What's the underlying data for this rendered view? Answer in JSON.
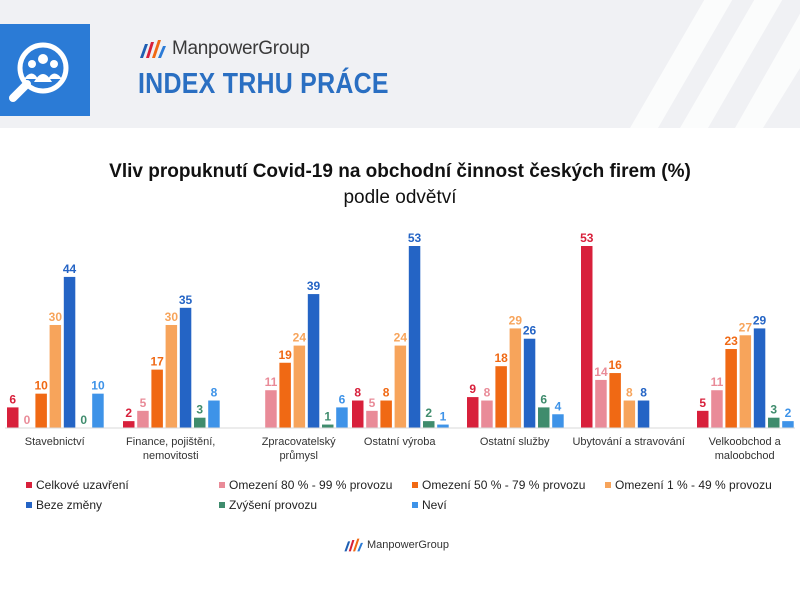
{
  "banner": {
    "brand": "ManpowerGroup",
    "title": "INDEX TRHU PRÁCE",
    "icon": "people-search-icon"
  },
  "footer": {
    "brand": "ManpowerGroup"
  },
  "colors": {
    "brand_blue": "#2b7bd6",
    "title_blue": "#2a6fc2"
  },
  "chart_data": {
    "type": "bar",
    "title": "Vliv propuknutí Covid-19 na obchodní činnost českých firem (%)",
    "subtitle": "podle odvětví",
    "xlabel": "",
    "ylabel": "",
    "ylim": [
      0,
      55
    ],
    "grid": false,
    "legend_position": "bottom",
    "categories": [
      [
        "Stavebnictví"
      ],
      [
        "Finance, pojištění,",
        "nemovitosti"
      ],
      [
        "Zpracovatelský",
        "průmysl"
      ],
      [
        "Ostatní výroba"
      ],
      [
        "Ostatní služby"
      ],
      [
        "Ubytování a stravování"
      ],
      [
        "Velkoobchod a",
        "maloobchod"
      ]
    ],
    "series": [
      {
        "name": "Celkové uzavření",
        "color": "#d8203b",
        "values": [
          6,
          2,
          null,
          8,
          9,
          53,
          5
        ]
      },
      {
        "name": "Omezení 80 % - 99 % provozu",
        "color": "#e98b98",
        "values": [
          0,
          5,
          11,
          5,
          8,
          14,
          11
        ]
      },
      {
        "name": "Omezení 50 % - 79 % provozu",
        "color": "#f06914",
        "values": [
          10,
          17,
          19,
          8,
          18,
          16,
          23
        ]
      },
      {
        "name": "Omezení 1 % - 49 % provozu",
        "color": "#f7a45b",
        "values": [
          30,
          30,
          24,
          24,
          29,
          8,
          27
        ]
      },
      {
        "name": "Beze změny",
        "color": "#2464c5",
        "values": [
          44,
          35,
          39,
          53,
          26,
          8,
          29
        ]
      },
      {
        "name": "Zvýšení provozu",
        "color": "#3f8c6d",
        "values": [
          0,
          3,
          1,
          2,
          6,
          null,
          3
        ]
      },
      {
        "name": "Neví",
        "color": "#3e93e8",
        "values": [
          10,
          8,
          6,
          1,
          4,
          null,
          2
        ]
      }
    ]
  }
}
